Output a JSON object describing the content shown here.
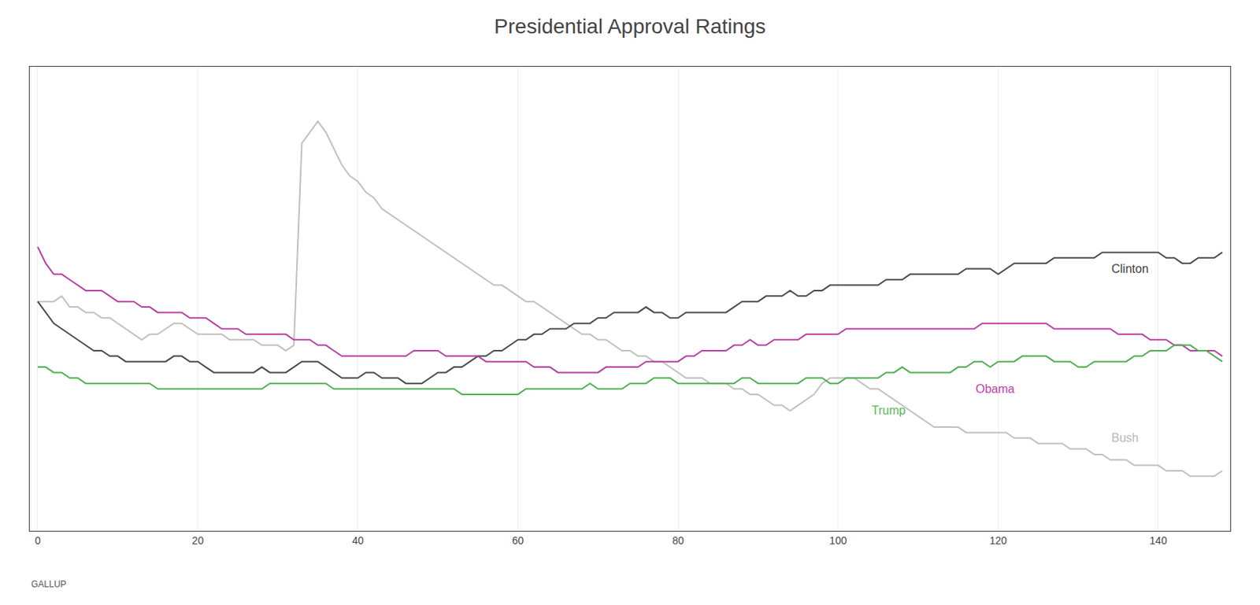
{
  "chart_data": {
    "type": "line",
    "title": "Presidential Approval Ratings",
    "x": [
      0,
      1,
      2,
      3,
      4,
      5,
      6,
      7,
      8,
      9,
      10,
      11,
      12,
      13,
      14,
      15,
      16,
      17,
      18,
      19,
      20,
      21,
      22,
      23,
      24,
      25,
      26,
      27,
      28,
      29,
      30,
      31,
      32,
      33,
      34,
      35,
      36,
      37,
      38,
      39,
      40,
      41,
      42,
      43,
      44,
      45,
      46,
      47,
      48,
      49,
      50,
      51,
      52,
      53,
      54,
      55,
      56,
      57,
      58,
      59,
      60,
      61,
      62,
      63,
      64,
      65,
      66,
      67,
      68,
      69,
      70,
      71,
      72,
      73,
      74,
      75,
      76,
      77,
      78,
      79,
      80,
      81,
      82,
      83,
      84,
      85,
      86,
      87,
      88,
      89,
      90,
      91,
      92,
      93,
      94,
      95,
      96,
      97,
      98,
      99,
      100,
      101,
      102,
      103,
      104,
      105,
      106,
      107,
      108,
      109,
      110,
      111,
      112,
      113,
      114,
      115,
      116,
      117,
      118,
      119,
      120,
      121,
      122,
      123,
      124,
      125,
      126,
      127,
      128,
      129,
      130,
      131,
      132,
      133,
      134,
      135,
      136,
      137,
      138,
      139,
      140,
      141,
      142,
      143,
      144,
      145,
      146,
      147,
      148
    ],
    "series": [
      {
        "name": "Bush",
        "color": "#c0c0bc",
        "values": [
          57,
          57,
          57,
          58,
          56,
          56,
          55,
          55,
          54,
          54,
          53,
          52,
          51,
          50,
          51,
          51,
          52,
          53,
          53,
          52,
          51,
          51,
          51,
          51,
          50,
          50,
          50,
          50,
          49,
          49,
          49,
          48,
          49,
          86,
          88,
          90,
          88,
          85,
          82,
          80,
          79,
          77,
          76,
          74,
          73,
          72,
          71,
          70,
          69,
          68,
          67,
          66,
          65,
          64,
          63,
          62,
          61,
          60,
          60,
          59,
          58,
          57,
          57,
          56,
          55,
          54,
          53,
          52,
          51,
          51,
          50,
          50,
          49,
          48,
          48,
          47,
          47,
          46,
          46,
          45,
          44,
          43,
          43,
          43,
          42,
          42,
          42,
          41,
          41,
          40,
          40,
          39,
          38,
          38,
          37,
          38,
          39,
          40,
          42,
          43,
          43,
          43,
          43,
          42,
          41,
          41,
          40,
          39,
          38,
          37,
          36,
          35,
          34,
          34,
          34,
          34,
          33,
          33,
          33,
          33,
          33,
          33,
          32,
          32,
          32,
          31,
          31,
          31,
          31,
          30,
          30,
          30,
          29,
          29,
          28,
          28,
          28,
          27,
          27,
          27,
          27,
          26,
          26,
          26,
          25,
          25,
          25,
          25,
          26
        ]
      },
      {
        "name": "Clinton",
        "color": "#4a4a4a",
        "values": [
          57,
          55,
          53,
          52,
          51,
          50,
          49,
          48,
          48,
          47,
          47,
          46,
          46,
          46,
          46,
          46,
          46,
          47,
          47,
          46,
          46,
          45,
          44,
          44,
          44,
          44,
          44,
          44,
          45,
          44,
          44,
          44,
          45,
          46,
          46,
          46,
          45,
          44,
          43,
          43,
          43,
          44,
          44,
          43,
          43,
          43,
          42,
          42,
          42,
          43,
          44,
          44,
          45,
          45,
          46,
          47,
          47,
          48,
          48,
          49,
          50,
          50,
          51,
          51,
          52,
          52,
          52,
          53,
          53,
          53,
          54,
          54,
          55,
          55,
          55,
          55,
          56,
          55,
          55,
          54,
          54,
          55,
          55,
          55,
          55,
          55,
          55,
          56,
          57,
          57,
          57,
          58,
          58,
          58,
          59,
          58,
          58,
          59,
          59,
          60,
          60,
          60,
          60,
          60,
          60,
          60,
          61,
          61,
          61,
          62,
          62,
          62,
          62,
          62,
          62,
          62,
          63,
          63,
          63,
          63,
          62,
          63,
          64,
          64,
          64,
          64,
          64,
          65,
          65,
          65,
          65,
          65,
          65,
          66,
          66,
          66,
          66,
          66,
          66,
          66,
          66,
          65,
          65,
          64,
          64,
          65,
          65,
          65,
          66
        ]
      },
      {
        "name": "Obama",
        "color": "#b840a0",
        "values": [
          67,
          64,
          62,
          62,
          61,
          60,
          59,
          59,
          59,
          58,
          57,
          57,
          57,
          56,
          56,
          55,
          55,
          55,
          55,
          54,
          54,
          54,
          53,
          52,
          52,
          52,
          51,
          51,
          51,
          51,
          51,
          51,
          50,
          50,
          50,
          49,
          49,
          48,
          47,
          47,
          47,
          47,
          47,
          47,
          47,
          47,
          47,
          48,
          48,
          48,
          48,
          47,
          47,
          47,
          47,
          47,
          46,
          46,
          46,
          46,
          46,
          46,
          45,
          45,
          45,
          44,
          44,
          44,
          44,
          44,
          44,
          45,
          45,
          45,
          45,
          45,
          46,
          46,
          46,
          46,
          46,
          47,
          47,
          48,
          48,
          48,
          48,
          49,
          49,
          50,
          49,
          49,
          50,
          50,
          50,
          50,
          51,
          51,
          51,
          51,
          51,
          52,
          52,
          52,
          52,
          52,
          52,
          52,
          52,
          52,
          52,
          52,
          52,
          52,
          52,
          52,
          52,
          52,
          53,
          53,
          53,
          53,
          53,
          53,
          53,
          53,
          53,
          52,
          52,
          52,
          52,
          52,
          52,
          52,
          52,
          51,
          51,
          51,
          51,
          50,
          50,
          50,
          49,
          49,
          48,
          48,
          48,
          48,
          47
        ]
      },
      {
        "name": "Trump",
        "color": "#50b050",
        "values": [
          45,
          45,
          44,
          44,
          43,
          43,
          42,
          42,
          42,
          42,
          42,
          42,
          42,
          42,
          42,
          41,
          41,
          41,
          41,
          41,
          41,
          41,
          41,
          41,
          41,
          41,
          41,
          41,
          41,
          42,
          42,
          42,
          42,
          42,
          42,
          42,
          42,
          41,
          41,
          41,
          41,
          41,
          41,
          41,
          41,
          41,
          41,
          41,
          41,
          41,
          41,
          41,
          41,
          40,
          40,
          40,
          40,
          40,
          40,
          40,
          40,
          41,
          41,
          41,
          41,
          41,
          41,
          41,
          41,
          42,
          41,
          41,
          41,
          41,
          42,
          42,
          42,
          43,
          43,
          43,
          42,
          42,
          42,
          42,
          42,
          42,
          42,
          42,
          43,
          43,
          42,
          42,
          42,
          42,
          42,
          42,
          43,
          43,
          43,
          42,
          42,
          43,
          43,
          43,
          43,
          43,
          44,
          44,
          45,
          44,
          44,
          44,
          44,
          44,
          44,
          45,
          45,
          46,
          46,
          45,
          46,
          46,
          46,
          47,
          47,
          47,
          47,
          46,
          46,
          46,
          45,
          45,
          46,
          46,
          46,
          46,
          46,
          47,
          47,
          48,
          48,
          48,
          49,
          49,
          49,
          48,
          48,
          47,
          46
        ]
      }
    ],
    "xlim": [
      -1,
      149
    ],
    "ylim": [
      15,
      100
    ],
    "xticks": [
      0,
      20,
      40,
      60,
      80,
      100,
      120,
      140
    ],
    "tick_labels": "x",
    "grid": "x",
    "annotations": [
      {
        "text": "Bush",
        "x": 134,
        "y": 32,
        "color": "#b8b8b8"
      },
      {
        "text": "Clinton",
        "x": 134,
        "y": 63,
        "color": "#404040"
      },
      {
        "text": "Trump",
        "x": 104,
        "y": 37,
        "color": "#5ab55a"
      },
      {
        "text": "Obama",
        "x": 117,
        "y": 41,
        "color": "#c040a8"
      },
      {
        "text": "GALLUP"
      }
    ]
  }
}
